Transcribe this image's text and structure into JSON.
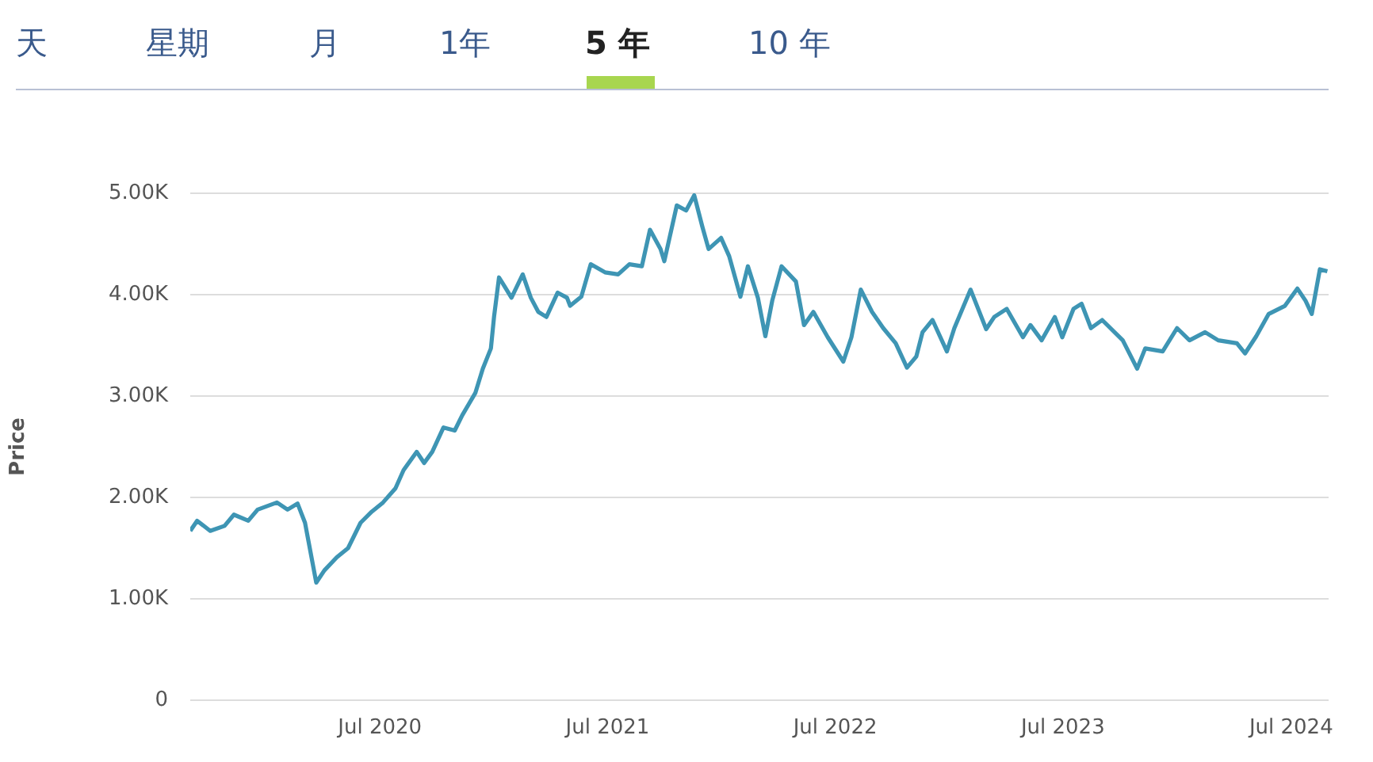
{
  "chart_data": {
    "type": "line",
    "ylabel": "Price",
    "annotations": [
      "天",
      "星期",
      "月",
      "1年",
      "5 年",
      "10 年"
    ],
    "series": [
      {
        "color": "#3e95b4",
        "x": [
          "2019-09-01",
          "2019-09-12",
          "2019-10-03",
          "2019-10-26",
          "2019-11-10",
          "2019-12-03",
          "2019-12-18",
          "2020-01-18",
          "2020-02-04",
          "2020-02-20",
          "2020-03-03",
          "2020-03-21",
          "2020-04-03",
          "2020-04-23",
          "2020-05-11",
          "2020-05-31",
          "2020-06-18",
          "2020-07-06",
          "2020-07-26",
          "2020-08-08",
          "2020-08-29",
          "2020-09-10",
          "2020-09-23",
          "2020-10-11",
          "2020-10-29",
          "2020-11-10",
          "2020-12-01",
          "2020-12-13",
          "2020-12-26",
          "2020-12-31",
          "2021-01-08",
          "2021-01-16",
          "2021-01-28",
          "2021-02-15",
          "2021-02-28",
          "2021-03-12",
          "2021-03-25",
          "2021-04-12",
          "2021-04-27",
          "2021-05-02",
          "2021-05-20",
          "2021-06-04",
          "2021-06-27",
          "2021-07-18",
          "2021-08-05",
          "2021-08-25",
          "2021-09-07",
          "2021-09-24",
          "2021-09-30",
          "2021-10-20",
          "2021-11-04",
          "2021-11-17",
          "2021-11-30",
          "2021-12-10",
          "2021-12-30",
          "2022-01-12",
          "2022-01-30",
          "2022-02-11",
          "2022-02-27",
          "2022-03-11",
          "2022-03-22",
          "2022-04-06",
          "2022-04-29",
          "2022-05-12",
          "2022-05-27",
          "2022-06-19",
          "2022-07-14",
          "2022-07-27",
          "2022-08-11",
          "2022-08-29",
          "2022-09-16",
          "2022-10-06",
          "2022-10-24",
          "2022-11-08",
          "2022-11-18",
          "2022-12-04",
          "2022-12-27",
          "2023-01-08",
          "2023-02-03",
          "2023-02-28",
          "2023-03-13",
          "2023-04-02",
          "2023-04-28",
          "2023-05-10",
          "2023-05-28",
          "2023-06-18",
          "2023-06-30",
          "2023-07-18",
          "2023-07-31",
          "2023-08-15",
          "2023-09-02",
          "2023-10-05",
          "2023-10-28",
          "2023-11-10",
          "2023-12-08",
          "2023-12-31",
          "2024-01-20",
          "2024-02-14",
          "2024-03-06",
          "2024-04-05",
          "2024-04-18",
          "2024-05-06",
          "2024-05-26",
          "2024-06-21",
          "2024-07-11",
          "2024-07-24",
          "2024-08-03",
          "2024-08-16",
          "2024-08-28"
        ],
        "values": [
          1670,
          1770,
          1670,
          1720,
          1830,
          1770,
          1880,
          1950,
          1880,
          1940,
          1750,
          1160,
          1280,
          1410,
          1500,
          1750,
          1860,
          1950,
          2090,
          2270,
          2450,
          2340,
          2450,
          2690,
          2660,
          2810,
          3030,
          3270,
          3470,
          3780,
          4170,
          4090,
          3970,
          4200,
          3970,
          3830,
          3780,
          4020,
          3970,
          3890,
          3980,
          4300,
          4220,
          4200,
          4300,
          4280,
          4640,
          4450,
          4330,
          4880,
          4830,
          4980,
          4670,
          4450,
          4560,
          4380,
          3980,
          4280,
          3970,
          3590,
          3940,
          4280,
          4130,
          3700,
          3830,
          3580,
          3340,
          3580,
          4050,
          3830,
          3670,
          3520,
          3280,
          3390,
          3630,
          3750,
          3440,
          3670,
          4050,
          3660,
          3780,
          3860,
          3580,
          3700,
          3550,
          3780,
          3580,
          3860,
          3910,
          3670,
          3750,
          3550,
          3270,
          3470,
          3440,
          3670,
          3550,
          3630,
          3550,
          3520,
          3420,
          3590,
          3810,
          3890,
          4060,
          3940,
          3810,
          4250,
          4230
        ]
      }
    ],
    "xlim": [
      "2019-09-01",
      "2024-08-30"
    ],
    "xticks": [
      {
        "value": "2020-07-01",
        "label": "Jul 2020"
      },
      {
        "value": "2021-07-01",
        "label": "Jul 2021"
      },
      {
        "value": "2022-07-01",
        "label": "Jul 2022"
      },
      {
        "value": "2023-07-01",
        "label": "Jul 2023"
      },
      {
        "value": "2024-07-01",
        "label": "Jul 2024"
      }
    ],
    "ylim": [
      0,
      5000
    ],
    "yticks": [
      0,
      {
        "value": 1000,
        "label": "1.00K"
      },
      {
        "value": 2000,
        "label": "2.00K"
      },
      {
        "value": 3000,
        "label": "3.00K"
      },
      {
        "value": 4000,
        "label": "4.00K"
      },
      {
        "value": 5000,
        "label": "5.00K"
      }
    ],
    "grid": "y",
    "marker": "none",
    "line_style": "solid"
  }
}
